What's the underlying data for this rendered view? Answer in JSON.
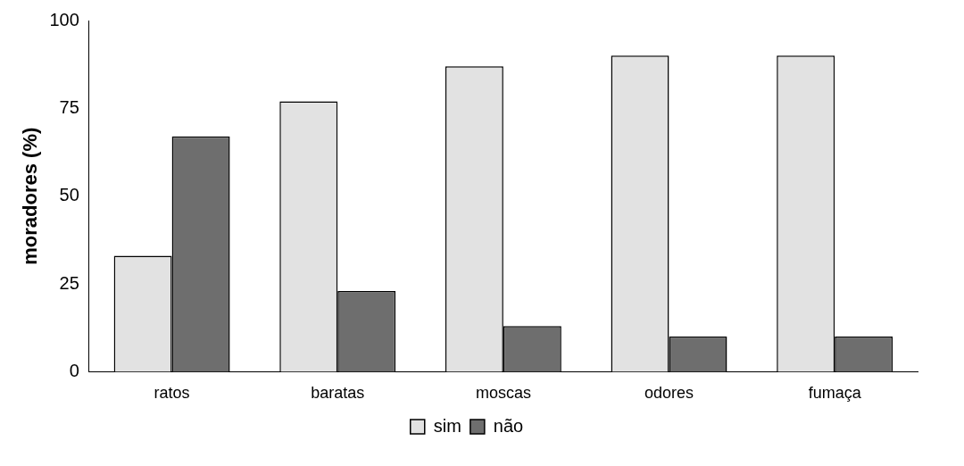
{
  "chart_data": {
    "type": "bar",
    "ylabel": "moradores (%)",
    "categories": [
      "ratos",
      "baratas",
      "moscas",
      "odores",
      "fumaça"
    ],
    "series": [
      {
        "name": "sim",
        "color": "#e2e2e2",
        "values": [
          33,
          77,
          87,
          90,
          90
        ]
      },
      {
        "name": "não",
        "color": "#6e6e6e",
        "values": [
          67,
          23,
          13,
          10,
          10
        ]
      }
    ],
    "ylim": [
      0,
      100
    ],
    "yticks": [
      0,
      25,
      50,
      75,
      100
    ],
    "grid": false,
    "legend": "bottom"
  }
}
